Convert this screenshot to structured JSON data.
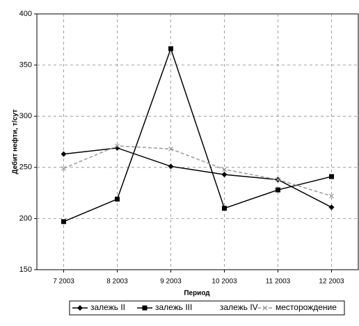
{
  "chart_data": {
    "type": "line",
    "y_label": "Дебит нефти, т/сут",
    "x_label": "Период",
    "categories": [
      "7 2003",
      "8 2003",
      "9 2003",
      "10 2003",
      "11 2003",
      "12 2003"
    ],
    "series": [
      {
        "name": "залежь II",
        "color": "#000000",
        "marker": "diamond",
        "dash": false,
        "values": [
          263,
          269,
          251,
          243,
          238,
          211
        ]
      },
      {
        "name": "залежь III",
        "color": "#000000",
        "marker": "square",
        "dash": false,
        "values": [
          197,
          219,
          366,
          210,
          228,
          241
        ]
      },
      {
        "name": "залежь IV",
        "color": "#ffffff",
        "marker": "none",
        "dash": false,
        "values": [
          null,
          null,
          null,
          null,
          null,
          null
        ]
      },
      {
        "name": "месторождение",
        "color": "#999999",
        "marker": "x",
        "dash": true,
        "values": [
          249,
          271,
          268,
          248,
          238,
          222
        ]
      }
    ],
    "ylim": [
      150,
      400
    ],
    "yticks": [
      150,
      200,
      250,
      300,
      350,
      400
    ],
    "grid": true,
    "legend": "bottom"
  }
}
